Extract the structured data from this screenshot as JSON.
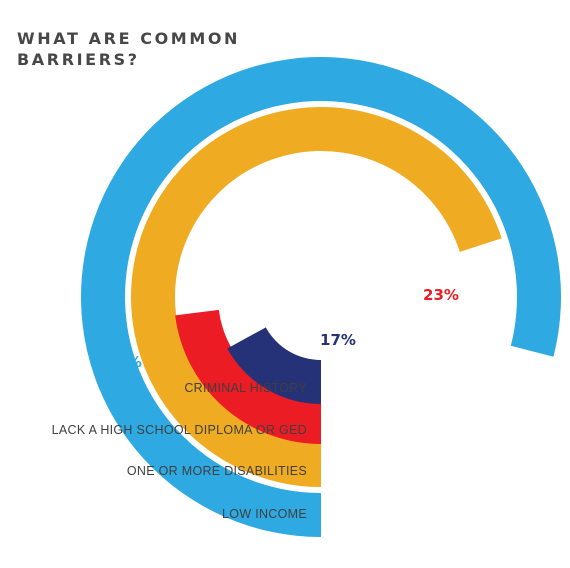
{
  "title": "WHAT ARE COMMON BARRIERS?",
  "chart_data": {
    "type": "radial-bar",
    "title": "WHAT ARE COMMON BARRIERS?",
    "unit": "%",
    "max": 100,
    "series": [
      {
        "category": "LOW INCOME",
        "value": 79,
        "label": "79%",
        "color": "#2EA9E1"
      },
      {
        "category": "ONE OR MORE DISABILITIES",
        "value": 70,
        "label": "70%",
        "color": "#EFAB22"
      },
      {
        "category": "LACK A HIGH SCHOOL DIPLOMA OR GED",
        "value": 23,
        "label": "23%",
        "color": "#EC1C24"
      },
      {
        "category": "CRIMINAL HISTORY",
        "value": 17,
        "label": "17%",
        "color": "#263278"
      }
    ]
  }
}
